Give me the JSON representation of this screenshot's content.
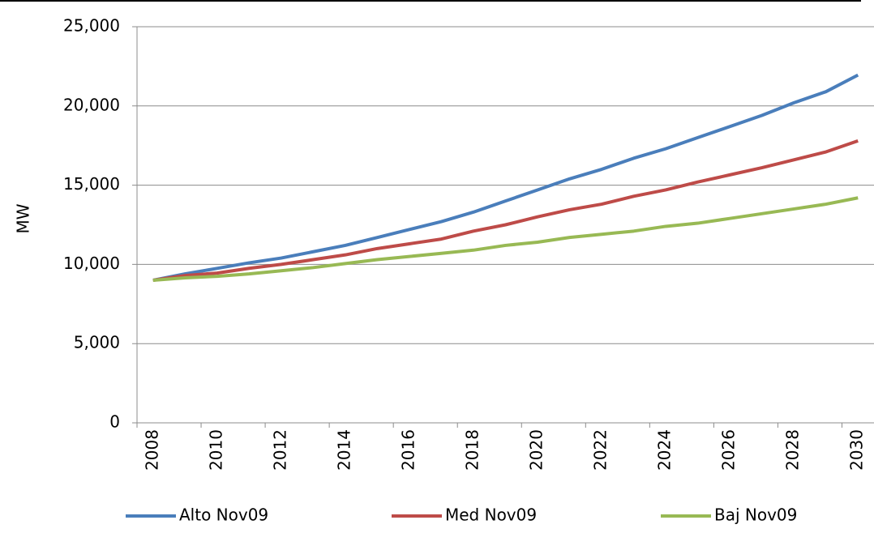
{
  "chart_data": {
    "type": "line",
    "y_label": "MW",
    "categories": [
      2008,
      null,
      2010,
      null,
      2012,
      null,
      2014,
      null,
      2016,
      null,
      2018,
      null,
      2020,
      null,
      2022,
      null,
      2024,
      null,
      2026,
      null,
      2028,
      null,
      2030
    ],
    "series": [
      {
        "name": "Alto Nov09",
        "color": "#4a7ebb",
        "values": [
          9000,
          9400,
          9750,
          10100,
          10400,
          10800,
          11200,
          11700,
          12200,
          12700,
          13300,
          14000,
          14700,
          15400,
          16000,
          16700,
          17300,
          18000,
          18700,
          19400,
          20200,
          20900,
          21950
        ]
      },
      {
        "name": "Med Nov09",
        "color": "#be4b48",
        "values": [
          9000,
          9300,
          9450,
          9750,
          10000,
          10300,
          10600,
          11000,
          11300,
          11600,
          12100,
          12500,
          13000,
          13450,
          13800,
          14300,
          14700,
          15200,
          15650,
          16100,
          16600,
          17100,
          17800
        ]
      },
      {
        "name": "Baj Nov09",
        "color": "#98b954",
        "values": [
          9000,
          9150,
          9250,
          9400,
          9600,
          9800,
          10050,
          10300,
          10500,
          10700,
          10900,
          11200,
          11400,
          11700,
          11900,
          12100,
          12400,
          12600,
          12900,
          13200,
          13500,
          13800,
          14200
        ]
      }
    ],
    "ylim": [
      0,
      25000
    ],
    "yticks": [
      0,
      {
        "value": 5000,
        "label": "5,000"
      },
      {
        "value": 10000,
        "label": "10,000"
      },
      {
        "value": 15000,
        "label": "15,000"
      },
      {
        "value": 20000,
        "label": "20,000"
      },
      {
        "value": 25000,
        "label": "25,000"
      }
    ],
    "grid": true,
    "legend": "bottom"
  }
}
